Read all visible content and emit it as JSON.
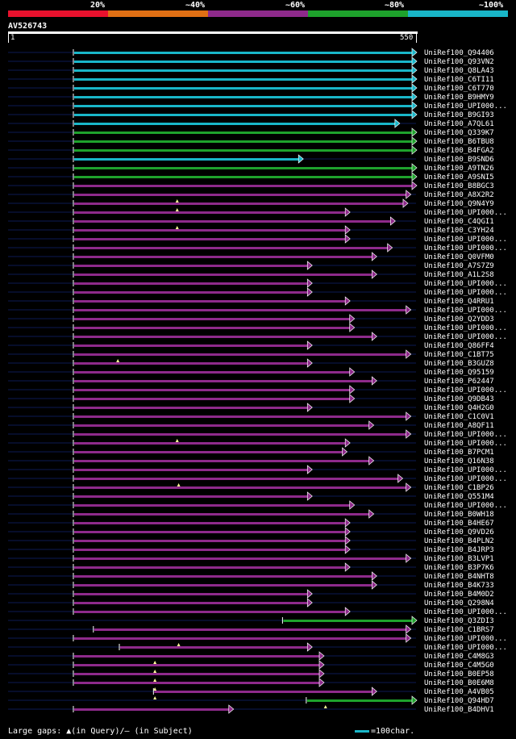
{
  "legend": {
    "labels": [
      "20%",
      "~40%",
      "~60%",
      "~80%",
      "~100%"
    ],
    "colors": [
      "#e8112d",
      "#e06f14",
      "#8e2a8b",
      "#1ea22c",
      "#19b6c8"
    ]
  },
  "query": {
    "id": "AV526743",
    "start_label": "1",
    "end_label": "550",
    "length": 550
  },
  "hits": [
    {
      "label": "UniRef100_Q94406",
      "start": 88,
      "end": 550,
      "color": "teal",
      "tri": null
    },
    {
      "label": "UniRef100_Q93VN2",
      "start": 88,
      "end": 550,
      "color": "teal",
      "tri": null
    },
    {
      "label": "UniRef100_Q8LA43",
      "start": 88,
      "end": 550,
      "color": "teal",
      "tri": null
    },
    {
      "label": "UniRef100_C6TI11",
      "start": 88,
      "end": 550,
      "color": "teal",
      "tri": null
    },
    {
      "label": "UniRef100_C6T770",
      "start": 88,
      "end": 550,
      "color": "teal",
      "tri": null
    },
    {
      "label": "UniRef100_B9HMY9",
      "start": 88,
      "end": 550,
      "color": "teal",
      "tri": null
    },
    {
      "label": "UniRef100_UPI000...",
      "start": 88,
      "end": 550,
      "color": "teal",
      "tri": null
    },
    {
      "label": "UniRef100_B9GI93",
      "start": 88,
      "end": 550,
      "color": "teal",
      "tri": null
    },
    {
      "label": "UniRef100_A7QL61",
      "start": 88,
      "end": 527,
      "color": "teal",
      "tri": null
    },
    {
      "label": "UniRef100_Q339K7",
      "start": 88,
      "end": 550,
      "color": "green",
      "tri": null
    },
    {
      "label": "UniRef100_B6TBU8",
      "start": 88,
      "end": 550,
      "color": "green",
      "tri": null
    },
    {
      "label": "UniRef100_B4FGA2",
      "start": 88,
      "end": 550,
      "color": "green",
      "tri": null
    },
    {
      "label": "UniRef100_B9SND6",
      "start": 88,
      "end": 397,
      "color": "teal",
      "tri": null
    },
    {
      "label": "UniRef100_A9TN26",
      "start": 88,
      "end": 550,
      "color": "green",
      "tri": null
    },
    {
      "label": "UniRef100_A9SNI5",
      "start": 88,
      "end": 550,
      "color": "green",
      "tri": null
    },
    {
      "label": "UniRef100_B8BGC3",
      "start": 88,
      "end": 550,
      "color": "purple",
      "tri": null
    },
    {
      "label": "UniRef100_A8X2R2",
      "start": 88,
      "end": 542,
      "color": "purple",
      "tri": 228
    },
    {
      "label": "UniRef100_Q9N4Y9",
      "start": 88,
      "end": 538,
      "color": "purple",
      "tri": 228
    },
    {
      "label": "UniRef100_UPI000...",
      "start": 88,
      "end": 460,
      "color": "purple",
      "tri": null
    },
    {
      "label": "UniRef100_C4QGI1",
      "start": 88,
      "end": 521,
      "color": "purple",
      "tri": 228
    },
    {
      "label": "UniRef100_C3YH24",
      "start": 88,
      "end": 460,
      "color": "purple",
      "tri": null
    },
    {
      "label": "UniRef100_UPI000...",
      "start": 88,
      "end": 460,
      "color": "purple",
      "tri": null
    },
    {
      "label": "UniRef100_UPI000...",
      "start": 88,
      "end": 517,
      "color": "purple",
      "tri": null
    },
    {
      "label": "UniRef100_Q0VFM0",
      "start": 88,
      "end": 496,
      "color": "purple",
      "tri": null
    },
    {
      "label": "UniRef100_A7S7Z9",
      "start": 88,
      "end": 409,
      "color": "purple",
      "tri": null
    },
    {
      "label": "UniRef100_A1L2S8",
      "start": 88,
      "end": 496,
      "color": "purple",
      "tri": null
    },
    {
      "label": "UniRef100_UPI000...",
      "start": 88,
      "end": 409,
      "color": "purple",
      "tri": null
    },
    {
      "label": "UniRef100_UPI000...",
      "start": 88,
      "end": 409,
      "color": "purple",
      "tri": null
    },
    {
      "label": "UniRef100_Q4RRU1",
      "start": 88,
      "end": 460,
      "color": "purple",
      "tri": null
    },
    {
      "label": "UniRef100_UPI000...",
      "start": 88,
      "end": 542,
      "color": "purple",
      "tri": null
    },
    {
      "label": "UniRef100_Q2YDD3",
      "start": 88,
      "end": 466,
      "color": "purple",
      "tri": null
    },
    {
      "label": "UniRef100_UPI000...",
      "start": 88,
      "end": 466,
      "color": "purple",
      "tri": null
    },
    {
      "label": "UniRef100_UPI000...",
      "start": 88,
      "end": 496,
      "color": "purple",
      "tri": null
    },
    {
      "label": "UniRef100_Q86FF4",
      "start": 88,
      "end": 409,
      "color": "purple",
      "tri": null
    },
    {
      "label": "UniRef100_C1BT75",
      "start": 88,
      "end": 542,
      "color": "purple",
      "tri": 148
    },
    {
      "label": "UniRef100_B3GUZ8",
      "start": 88,
      "end": 409,
      "color": "purple",
      "tri": null
    },
    {
      "label": "UniRef100_Q95159",
      "start": 88,
      "end": 466,
      "color": "purple",
      "tri": null
    },
    {
      "label": "UniRef100_P62447",
      "start": 88,
      "end": 496,
      "color": "purple",
      "tri": null
    },
    {
      "label": "UniRef100_UPI000...",
      "start": 88,
      "end": 466,
      "color": "purple",
      "tri": null
    },
    {
      "label": "UniRef100_Q9DB43",
      "start": 88,
      "end": 466,
      "color": "purple",
      "tri": null
    },
    {
      "label": "UniRef100_Q4H2G0",
      "start": 88,
      "end": 409,
      "color": "purple",
      "tri": null
    },
    {
      "label": "UniRef100_C1C0V1",
      "start": 88,
      "end": 542,
      "color": "purple",
      "tri": null
    },
    {
      "label": "UniRef100_A8QF11",
      "start": 88,
      "end": 492,
      "color": "purple",
      "tri": null
    },
    {
      "label": "UniRef100_UPI000...",
      "start": 88,
      "end": 542,
      "color": "purple",
      "tri": 228
    },
    {
      "label": "UniRef100_UPI000...",
      "start": 88,
      "end": 460,
      "color": "purple",
      "tri": null
    },
    {
      "label": "UniRef100_B7PCM1",
      "start": 88,
      "end": 456,
      "color": "purple",
      "tri": null
    },
    {
      "label": "UniRef100_Q16N38",
      "start": 88,
      "end": 492,
      "color": "purple",
      "tri": null
    },
    {
      "label": "UniRef100_UPI000...",
      "start": 88,
      "end": 409,
      "color": "purple",
      "tri": null
    },
    {
      "label": "UniRef100_UPI000...",
      "start": 88,
      "end": 531,
      "color": "purple",
      "tri": 230
    },
    {
      "label": "UniRef100_C1BP26",
      "start": 88,
      "end": 542,
      "color": "purple",
      "tri": null
    },
    {
      "label": "UniRef100_Q551M4",
      "start": 88,
      "end": 409,
      "color": "purple",
      "tri": null
    },
    {
      "label": "UniRef100_UPI000...",
      "start": 88,
      "end": 466,
      "color": "purple",
      "tri": null
    },
    {
      "label": "UniRef100_B0WH18",
      "start": 88,
      "end": 492,
      "color": "purple",
      "tri": null
    },
    {
      "label": "UniRef100_B4HE67",
      "start": 88,
      "end": 460,
      "color": "purple",
      "tri": null
    },
    {
      "label": "UniRef100_Q9VD26",
      "start": 88,
      "end": 460,
      "color": "purple",
      "tri": null
    },
    {
      "label": "UniRef100_B4PLN2",
      "start": 88,
      "end": 460,
      "color": "purple",
      "tri": null
    },
    {
      "label": "UniRef100_B4JRP3",
      "start": 88,
      "end": 460,
      "color": "purple",
      "tri": null
    },
    {
      "label": "UniRef100_B3LVP1",
      "start": 88,
      "end": 542,
      "color": "purple",
      "tri": null
    },
    {
      "label": "UniRef100_B3P7K6",
      "start": 88,
      "end": 460,
      "color": "purple",
      "tri": null
    },
    {
      "label": "UniRef100_B4NHT8",
      "start": 88,
      "end": 496,
      "color": "purple",
      "tri": null
    },
    {
      "label": "UniRef100_B4K733",
      "start": 88,
      "end": 496,
      "color": "purple",
      "tri": null
    },
    {
      "label": "UniRef100_B4M0D2",
      "start": 88,
      "end": 409,
      "color": "purple",
      "tri": null
    },
    {
      "label": "UniRef100_Q298N4",
      "start": 88,
      "end": 409,
      "color": "purple",
      "tri": null
    },
    {
      "label": "UniRef100_UPI000...",
      "start": 88,
      "end": 460,
      "color": "purple",
      "tri": null
    },
    {
      "label": "UniRef100_Q3ZDI3",
      "start": 370,
      "end": 550,
      "color": "green",
      "tri": null
    },
    {
      "label": "UniRef100_C1BRS7",
      "start": 115,
      "end": 542,
      "color": "purple",
      "tri": null
    },
    {
      "label": "UniRef100_UPI000...",
      "start": 88,
      "end": 542,
      "color": "purple",
      "tri": 230
    },
    {
      "label": "UniRef100_UPI000...",
      "start": 150,
      "end": 409,
      "color": "purple",
      "tri": null
    },
    {
      "label": "UniRef100_C4M8G3",
      "start": 88,
      "end": 425,
      "color": "purple",
      "tri": 198
    },
    {
      "label": "UniRef100_C4M5G0",
      "start": 88,
      "end": 425,
      "color": "purple",
      "tri": 198
    },
    {
      "label": "UniRef100_B0EP58",
      "start": 88,
      "end": 425,
      "color": "purple",
      "tri": 198
    },
    {
      "label": "UniRef100_B0E6M8",
      "start": 88,
      "end": 425,
      "color": "purple",
      "tri": 198
    },
    {
      "label": "UniRef100_A4VB05",
      "start": 196,
      "end": 496,
      "color": "purple",
      "tri": 198
    },
    {
      "label": "UniRef100_Q94HD7",
      "start": 402,
      "end": 550,
      "color": "green",
      "tri": 428
    },
    {
      "label": "UniRef100_B4DHV1",
      "start": 88,
      "end": 303,
      "color": "purple",
      "tri": null
    }
  ],
  "footer": {
    "gaps_text": "Large gaps: ▲(in Query)/– (in Subject)",
    "scale_text": "=100char."
  }
}
